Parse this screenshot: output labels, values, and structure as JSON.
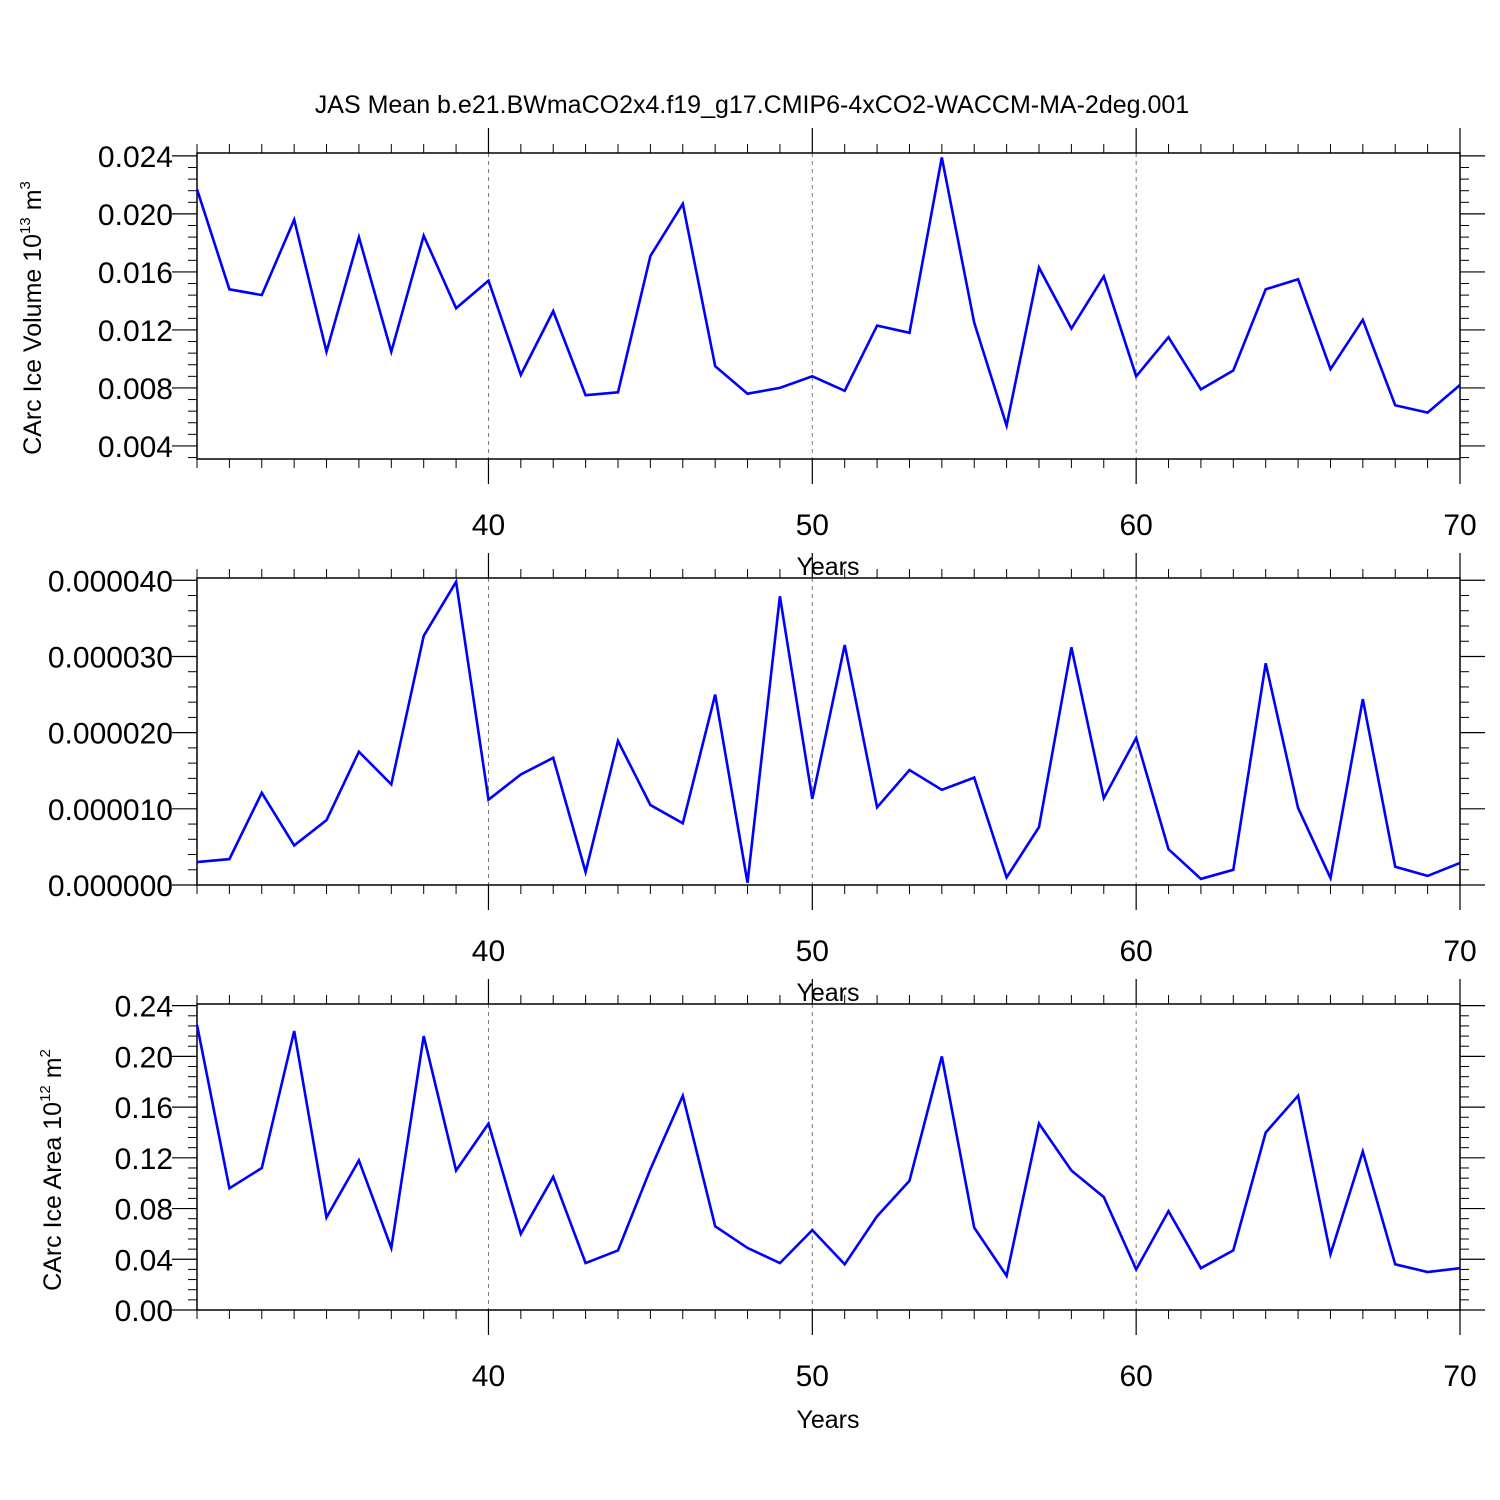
{
  "figure": {
    "title": "JAS Mean b.e21.BWmaCO2x4.f19_g17.CMIP6-4xCO2-WACCM-MA-2deg.001"
  },
  "chart_data": [
    {
      "type": "line",
      "id": "volume",
      "ylabel_main": "CArc Ice Volume 10",
      "ylabel_sup": "13",
      "ylabel_unit": " m",
      "ylabel_unit_sup": "3",
      "xlabel": "Years",
      "xlim": [
        31,
        70
      ],
      "ylim": [
        0.0031,
        0.0242
      ],
      "xticks": [
        40,
        50,
        60,
        70
      ],
      "xtick_labels": [
        "40",
        "50",
        "60",
        "70"
      ],
      "yticks": [
        0.004,
        0.008,
        0.012,
        0.016,
        0.02,
        0.024
      ],
      "ytick_labels": [
        "0.004",
        "0.008",
        "0.012",
        "0.016",
        "0.020",
        "0.024"
      ],
      "grid_x": [
        40,
        50,
        60
      ],
      "line_color": "#0000ff",
      "x": [
        31,
        32,
        33,
        34,
        35,
        36,
        37,
        38,
        39,
        40,
        41,
        42,
        43,
        44,
        45,
        46,
        47,
        48,
        49,
        50,
        51,
        52,
        53,
        54,
        55,
        56,
        57,
        58,
        59,
        60,
        61,
        62,
        63,
        64,
        65,
        66,
        67,
        68,
        69,
        70
      ],
      "values": [
        0.0217,
        0.0148,
        0.0144,
        0.0196,
        0.0105,
        0.0184,
        0.0105,
        0.0185,
        0.0135,
        0.0154,
        0.0089,
        0.0133,
        0.0075,
        0.0077,
        0.0171,
        0.0207,
        0.0095,
        0.0076,
        0.008,
        0.0088,
        0.0078,
        0.0123,
        0.0118,
        0.0239,
        0.0125,
        0.0054,
        0.0163,
        0.0121,
        0.0157,
        0.0088,
        0.0115,
        0.0079,
        0.0092,
        0.0148,
        0.0155,
        0.0093,
        0.0127,
        0.0068,
        0.0063,
        0.0082
      ]
    },
    {
      "type": "line",
      "id": "middle",
      "ylabel_main": "",
      "xlabel": "Years",
      "xlim": [
        31,
        70
      ],
      "ylim": [
        0.0,
        4.03e-05
      ],
      "xticks": [
        40,
        50,
        60,
        70
      ],
      "xtick_labels": [
        "40",
        "50",
        "60",
        "70"
      ],
      "yticks": [
        0.0,
        1e-05,
        2e-05,
        3e-05,
        4e-05
      ],
      "ytick_labels": [
        "0.000000",
        "0.000010",
        "0.000020",
        "0.000030",
        "0.000040"
      ],
      "grid_x": [
        40,
        50,
        60
      ],
      "line_color": "#0000ff",
      "x": [
        31,
        32,
        33,
        34,
        35,
        36,
        37,
        38,
        39,
        40,
        41,
        42,
        43,
        44,
        45,
        46,
        47,
        48,
        49,
        50,
        51,
        52,
        53,
        54,
        55,
        56,
        57,
        58,
        59,
        60,
        61,
        62,
        63,
        64,
        65,
        66,
        67,
        68,
        69,
        70
      ],
      "values": [
        3e-06,
        3.4e-06,
        1.21e-05,
        5.2e-06,
        8.5e-06,
        1.75e-05,
        1.32e-05,
        3.27e-05,
        3.98e-05,
        1.12e-05,
        1.45e-05,
        1.67e-05,
        1.7e-06,
        1.89e-05,
        1.05e-05,
        8.1e-06,
        2.5e-05,
        3e-07,
        3.79e-05,
        1.13e-05,
        3.15e-05,
        1.02e-05,
        1.51e-05,
        1.25e-05,
        1.41e-05,
        1e-06,
        7.6e-06,
        3.12e-05,
        1.14e-05,
        1.93e-05,
        4.7e-06,
        8e-07,
        2e-06,
        2.91e-05,
        1.01e-05,
        9e-07,
        2.44e-05,
        2.4e-06,
        1.2e-06,
        2.9e-06
      ]
    },
    {
      "type": "line",
      "id": "area",
      "ylabel_main": "CArc Ice Area 10",
      "ylabel_sup": "12",
      "ylabel_unit": " m",
      "ylabel_unit_sup": "2",
      "xlabel": "Years",
      "xlim": [
        31,
        70
      ],
      "ylim": [
        0.0,
        0.2413
      ],
      "xticks": [
        40,
        50,
        60,
        70
      ],
      "xtick_labels": [
        "40",
        "50",
        "60",
        "70"
      ],
      "yticks": [
        0.0,
        0.04,
        0.08,
        0.12,
        0.16,
        0.2,
        0.24
      ],
      "ytick_labels": [
        "0.00",
        "0.04",
        "0.08",
        "0.12",
        "0.16",
        "0.20",
        "0.24"
      ],
      "grid_x": [
        40,
        50,
        60
      ],
      "line_color": "#0000ff",
      "x": [
        31,
        32,
        33,
        34,
        35,
        36,
        37,
        38,
        39,
        40,
        41,
        42,
        43,
        44,
        45,
        46,
        47,
        48,
        49,
        50,
        51,
        52,
        53,
        54,
        55,
        56,
        57,
        58,
        59,
        60,
        61,
        62,
        63,
        64,
        65,
        66,
        67,
        68,
        69,
        70
      ],
      "values": [
        0.225,
        0.096,
        0.112,
        0.22,
        0.073,
        0.118,
        0.049,
        0.216,
        0.11,
        0.147,
        0.06,
        0.105,
        0.037,
        0.047,
        0.111,
        0.169,
        0.066,
        0.049,
        0.037,
        0.063,
        0.036,
        0.074,
        0.102,
        0.2,
        0.065,
        0.027,
        0.147,
        0.11,
        0.089,
        0.032,
        0.078,
        0.033,
        0.047,
        0.14,
        0.169,
        0.044,
        0.125,
        0.036,
        0.03,
        0.033
      ]
    }
  ]
}
